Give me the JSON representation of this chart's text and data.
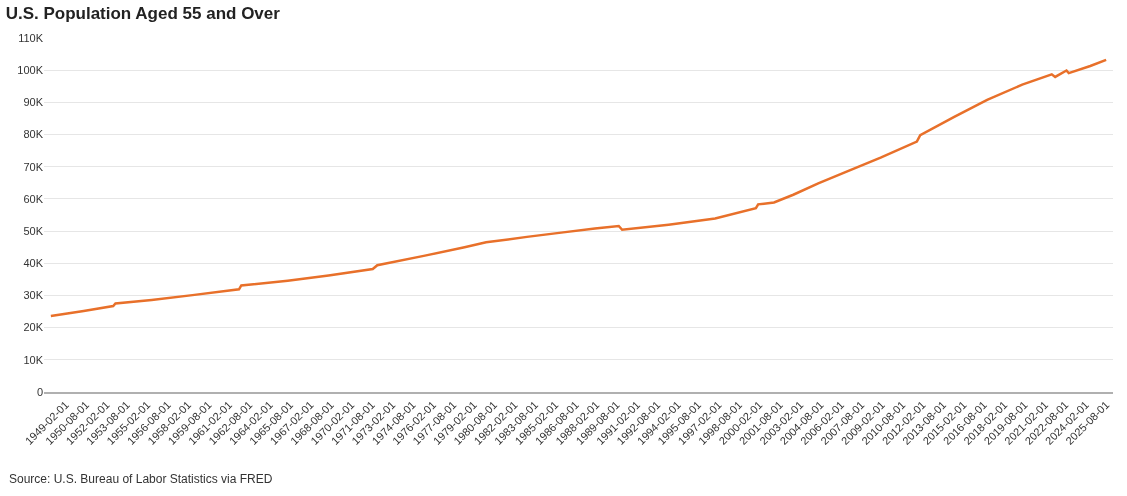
{
  "chart_data": {
    "type": "line",
    "title": "U.S. Population Aged 55 and Over",
    "annotations": [
      "Source: U.S. Bureau of Labor Statistics via FRED"
    ],
    "x": [
      "1948-01",
      "1950-06",
      "1952-08",
      "1952-10",
      "1955-06",
      "1958-06",
      "1961-11",
      "1962-01",
      "1965-06",
      "1968-06",
      "1971-09",
      "1972-01",
      "1975-06",
      "1978-06",
      "1980-01",
      "1983-01",
      "1985-09",
      "1988-01",
      "1989-10",
      "1990-01",
      "1993-06",
      "1996-11",
      "1999-11",
      "2000-01",
      "2001-03",
      "2002-08",
      "2004-06",
      "2006-06",
      "2009-01",
      "2011-09",
      "2011-12",
      "2014-06",
      "2016-11",
      "2019-06",
      "2021-08",
      "2021-11",
      "2022-09",
      "2022-11",
      "2024-06",
      "2025-08"
    ],
    "series": [
      {
        "color": "#e8702a",
        "values": [
          23600,
          25200,
          26700,
          27500,
          28600,
          30100,
          31900,
          33100,
          34600,
          36200,
          38200,
          39400,
          42300,
          45000,
          46500,
          48200,
          49600,
          50800,
          51600,
          50400,
          52000,
          53900,
          57100,
          58300,
          58900,
          61300,
          64800,
          68300,
          72800,
          77800,
          79800,
          85500,
          90800,
          95500,
          98700,
          97900,
          99900,
          99100,
          101300,
          103200
        ]
      }
    ],
    "xlim": [
      "1947-07",
      "2026-02"
    ],
    "xticks": [
      {
        "value": "1949-02-01",
        "label": "1949-02-01"
      },
      {
        "value": "1950-08-01",
        "label": "1950-08-01"
      },
      {
        "value": "1952-02-01",
        "label": "1952-02-01"
      },
      {
        "value": "1953-08-01",
        "label": "1953-08-01"
      },
      {
        "value": "1955-02-01",
        "label": "1955-02-01"
      },
      {
        "value": "1956-08-01",
        "label": "1956-08-01"
      },
      {
        "value": "1958-02-01",
        "label": "1958-02-01"
      },
      {
        "value": "1959-08-01",
        "label": "1959-08-01"
      },
      {
        "value": "1961-02-01",
        "label": "1961-02-01"
      },
      {
        "value": "1962-08-01",
        "label": "1962-08-01"
      },
      {
        "value": "1964-02-01",
        "label": "1964-02-01"
      },
      {
        "value": "1965-08-01",
        "label": "1965-08-01"
      },
      {
        "value": "1967-02-01",
        "label": "1967-02-01"
      },
      {
        "value": "1968-08-01",
        "label": "1968-08-01"
      },
      {
        "value": "1970-02-01",
        "label": "1970-02-01"
      },
      {
        "value": "1971-08-01",
        "label": "1971-08-01"
      },
      {
        "value": "1973-02-01",
        "label": "1973-02-01"
      },
      {
        "value": "1974-08-01",
        "label": "1974-08-01"
      },
      {
        "value": "1976-02-01",
        "label": "1976-02-01"
      },
      {
        "value": "1977-08-01",
        "label": "1977-08-01"
      },
      {
        "value": "1979-02-01",
        "label": "1979-02-01"
      },
      {
        "value": "1980-08-01",
        "label": "1980-08-01"
      },
      {
        "value": "1982-02-01",
        "label": "1982-02-01"
      },
      {
        "value": "1983-08-01",
        "label": "1983-08-01"
      },
      {
        "value": "1985-02-01",
        "label": "1985-02-01"
      },
      {
        "value": "1986-08-01",
        "label": "1986-08-01"
      },
      {
        "value": "1988-02-01",
        "label": "1988-02-01"
      },
      {
        "value": "1989-08-01",
        "label": "1989-08-01"
      },
      {
        "value": "1991-02-01",
        "label": "1991-02-01"
      },
      {
        "value": "1992-08-01",
        "label": "1992-08-01"
      },
      {
        "value": "1994-02-01",
        "label": "1994-02-01"
      },
      {
        "value": "1995-08-01",
        "label": "1995-08-01"
      },
      {
        "value": "1997-02-01",
        "label": "1997-02-01"
      },
      {
        "value": "1998-08-01",
        "label": "1998-08-01"
      },
      {
        "value": "2000-02-01",
        "label": "2000-02-01"
      },
      {
        "value": "2001-08-01",
        "label": "2001-08-01"
      },
      {
        "value": "2003-02-01",
        "label": "2003-02-01"
      },
      {
        "value": "2004-08-01",
        "label": "2004-08-01"
      },
      {
        "value": "2006-02-01",
        "label": "2006-02-01"
      },
      {
        "value": "2007-08-01",
        "label": "2007-08-01"
      },
      {
        "value": "2009-02-01",
        "label": "2009-02-01"
      },
      {
        "value": "2010-08-01",
        "label": "2010-08-01"
      },
      {
        "value": "2012-02-01",
        "label": "2012-02-01"
      },
      {
        "value": "2013-08-01",
        "label": "2013-08-01"
      },
      {
        "value": "2015-02-01",
        "label": "2015-02-01"
      },
      {
        "value": "2016-08-01",
        "label": "2016-08-01"
      },
      {
        "value": "2018-02-01",
        "label": "2018-02-01"
      },
      {
        "value": "2019-08-01",
        "label": "2019-08-01"
      },
      {
        "value": "2021-02-01",
        "label": "2021-02-01"
      },
      {
        "value": "2022-08-01",
        "label": "2022-08-01"
      },
      {
        "value": "2024-02-01",
        "label": "2024-02-01"
      },
      {
        "value": "2025-08-01",
        "label": "2025-08-01"
      }
    ],
    "ylim": [
      0,
      110000
    ],
    "yticks": [
      {
        "value": 0,
        "label": "0"
      },
      {
        "value": 10000,
        "label": "10K"
      },
      {
        "value": 20000,
        "label": "20K"
      },
      {
        "value": 30000,
        "label": "30K"
      },
      {
        "value": 40000,
        "label": "40K"
      },
      {
        "value": 50000,
        "label": "50K"
      },
      {
        "value": 60000,
        "label": "60K"
      },
      {
        "value": 70000,
        "label": "70K"
      },
      {
        "value": 80000,
        "label": "80K"
      },
      {
        "value": 90000,
        "label": "90K"
      },
      {
        "value": 100000,
        "label": "100K"
      },
      {
        "value": 110000,
        "label": "110K"
      }
    ],
    "grid": "y",
    "line_style": "solid"
  }
}
